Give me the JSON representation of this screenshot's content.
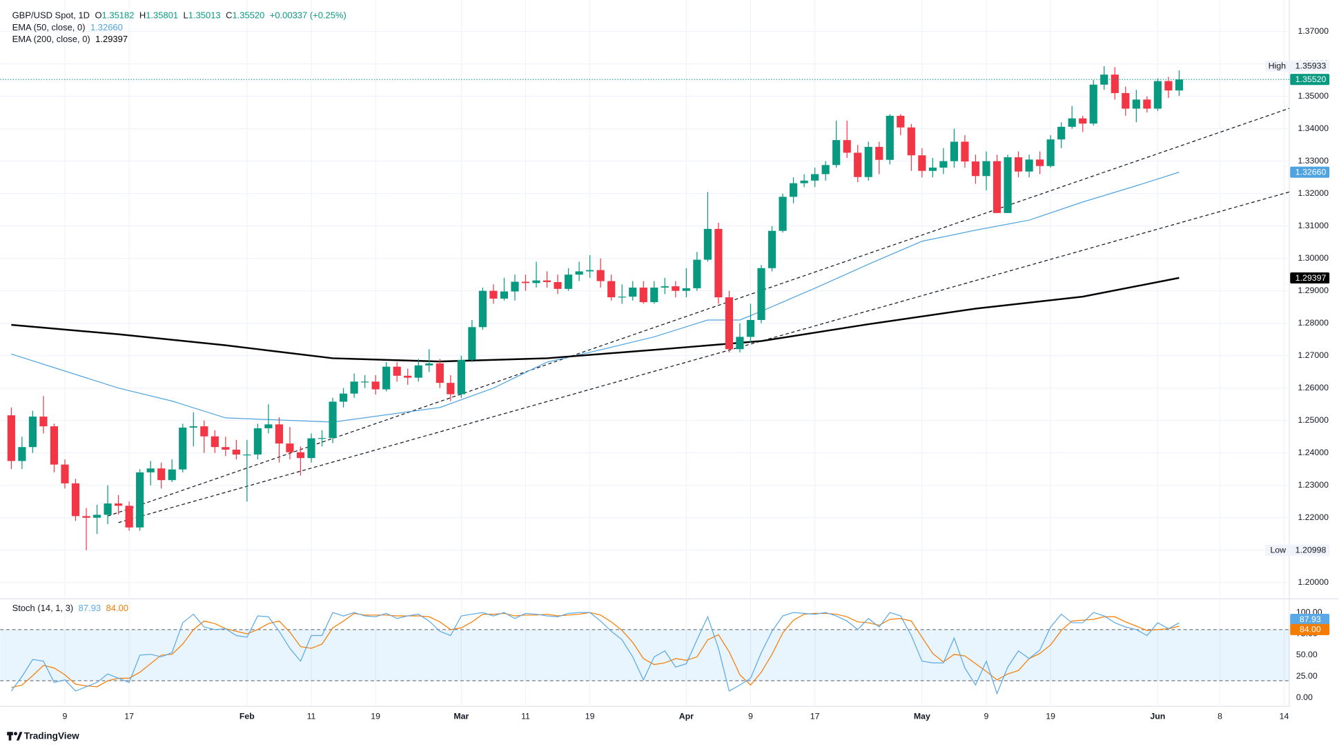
{
  "brand": "TradingView",
  "chart_data": [
    {
      "type": "candlestick",
      "title": "GBP/USD Spot, 1D",
      "header": [
        {
          "key": "O",
          "value": "1.35182"
        },
        {
          "key": "H",
          "value": "1.35801"
        },
        {
          "key": "L",
          "value": "1.35013"
        },
        {
          "key": "C",
          "value": "1.35520"
        }
      ],
      "change": "+0.00337 (+0.25%)",
      "up_color": "#089981",
      "down_color": "#f23645",
      "open": [
        1.2516,
        1.2375,
        1.2418,
        1.2512,
        1.2482,
        1.2364,
        1.2306,
        1.2205,
        1.22,
        1.2209,
        1.2244,
        1.2237,
        1.217,
        1.234,
        1.2352,
        1.2316,
        1.2349,
        1.2478,
        1.2482,
        1.2451,
        1.2418,
        1.241,
        1.2395,
        1.2395,
        1.2476,
        1.2488,
        1.2429,
        1.2402,
        1.2384,
        1.2445,
        1.2446,
        1.2558,
        1.2583,
        1.262,
        1.262,
        1.2596,
        1.2666,
        1.2638,
        1.2632,
        1.267,
        1.2676,
        1.2616,
        1.2581,
        1.2687,
        1.2788,
        1.29,
        1.2876,
        1.2898,
        1.2928,
        1.2924,
        1.2932,
        1.2927,
        1.2906,
        1.295,
        1.296,
        1.2964,
        1.293,
        1.288,
        1.2882,
        1.291,
        1.2865,
        1.291,
        1.2914,
        1.29,
        1.2908,
        1.2996,
        1.3091,
        1.288,
        1.272,
        1.2758,
        1.281,
        1.297,
        1.3085,
        1.319,
        1.3232,
        1.324,
        1.326,
        1.3288,
        1.3365,
        1.3326,
        1.3251,
        1.3344,
        1.3304,
        1.344,
        1.3404,
        1.3318,
        1.327,
        1.328,
        1.33,
        1.336,
        1.3299,
        1.3254,
        1.33,
        1.314,
        1.3312,
        1.3268,
        1.3305,
        1.3285,
        1.3367,
        1.3406,
        1.3432,
        1.3416,
        1.3536,
        1.3567,
        1.351,
        1.3462,
        1.349,
        1.3462,
        1.3547,
        1.3518
      ],
      "high": [
        1.254,
        1.245,
        1.253,
        1.2575,
        1.249,
        1.238,
        1.232,
        1.223,
        1.224,
        1.23,
        1.227,
        1.225,
        1.235,
        1.2375,
        1.237,
        1.238,
        1.249,
        1.2525,
        1.25,
        1.247,
        1.245,
        1.244,
        1.244,
        1.249,
        1.255,
        1.251,
        1.248,
        1.242,
        1.246,
        1.247,
        1.257,
        1.26,
        1.2645,
        1.264,
        1.264,
        1.268,
        1.268,
        1.266,
        1.269,
        1.272,
        1.269,
        1.264,
        1.27,
        1.281,
        1.291,
        1.292,
        1.294,
        1.295,
        1.295,
        1.299,
        1.296,
        1.295,
        1.297,
        1.299,
        1.301,
        1.3,
        1.295,
        1.292,
        1.293,
        1.293,
        1.293,
        1.294,
        1.293,
        1.297,
        1.302,
        1.3205,
        1.311,
        1.29,
        1.28,
        1.286,
        1.298,
        1.31,
        1.32,
        1.325,
        1.326,
        1.328,
        1.33,
        1.3425,
        1.3425,
        1.335,
        1.336,
        1.336,
        1.3445,
        1.3445,
        1.3415,
        1.334,
        1.331,
        1.334,
        1.34,
        1.338,
        1.332,
        1.333,
        1.332,
        1.332,
        1.333,
        1.332,
        1.333,
        1.338,
        1.342,
        1.347,
        1.344,
        1.355,
        1.3593,
        1.359,
        1.353,
        1.352,
        1.35,
        1.3555,
        1.356,
        1.358
      ],
      "low": [
        1.235,
        1.235,
        1.24,
        1.246,
        1.234,
        1.229,
        1.219,
        1.21,
        1.215,
        1.218,
        1.221,
        1.216,
        1.216,
        1.23,
        1.229,
        1.231,
        1.234,
        1.242,
        1.24,
        1.24,
        1.239,
        1.238,
        1.225,
        1.238,
        1.246,
        1.237,
        1.238,
        1.233,
        1.237,
        1.242,
        1.243,
        1.254,
        1.257,
        1.26,
        1.258,
        1.259,
        1.262,
        1.261,
        1.262,
        1.265,
        1.26,
        1.256,
        1.257,
        1.268,
        1.278,
        1.286,
        1.287,
        1.287,
        1.29,
        1.291,
        1.291,
        1.289,
        1.29,
        1.293,
        1.294,
        1.291,
        1.287,
        1.286,
        1.287,
        1.286,
        1.286,
        1.289,
        1.288,
        1.288,
        1.29,
        1.299,
        1.286,
        1.271,
        1.271,
        1.274,
        1.28,
        1.296,
        1.308,
        1.317,
        1.322,
        1.322,
        1.324,
        1.328,
        1.331,
        1.3235,
        1.324,
        1.326,
        1.329,
        1.338,
        1.327,
        1.325,
        1.325,
        1.326,
        1.328,
        1.328,
        1.323,
        1.321,
        1.314,
        1.314,
        1.325,
        1.325,
        1.326,
        1.328,
        1.334,
        1.34,
        1.339,
        1.341,
        1.352,
        1.349,
        1.344,
        1.342,
        1.345,
        1.3455,
        1.3495,
        1.3501
      ],
      "close": [
        1.2375,
        1.2418,
        1.2512,
        1.2482,
        1.2364,
        1.2306,
        1.2205,
        1.22,
        1.2209,
        1.2244,
        1.2237,
        1.217,
        1.234,
        1.2352,
        1.2316,
        1.2349,
        1.2478,
        1.2482,
        1.2451,
        1.2418,
        1.241,
        1.2395,
        1.2395,
        1.2476,
        1.2488,
        1.2429,
        1.2402,
        1.2384,
        1.2445,
        1.2446,
        1.2558,
        1.2583,
        1.262,
        1.262,
        1.2596,
        1.2666,
        1.2638,
        1.2632,
        1.267,
        1.2676,
        1.2616,
        1.2581,
        1.2687,
        1.2788,
        1.29,
        1.2876,
        1.2898,
        1.2928,
        1.2924,
        1.2932,
        1.2927,
        1.2906,
        1.295,
        1.296,
        1.2964,
        1.293,
        1.288,
        1.2882,
        1.291,
        1.2865,
        1.291,
        1.2914,
        1.29,
        1.2908,
        1.2996,
        1.3091,
        1.288,
        1.272,
        1.2758,
        1.281,
        1.297,
        1.3085,
        1.319,
        1.3232,
        1.324,
        1.326,
        1.3288,
        1.3365,
        1.3326,
        1.3251,
        1.3344,
        1.3304,
        1.344,
        1.3404,
        1.3318,
        1.327,
        1.328,
        1.33,
        1.336,
        1.3299,
        1.3254,
        1.33,
        1.314,
        1.3312,
        1.3268,
        1.3305,
        1.3285,
        1.3367,
        1.3406,
        1.3432,
        1.3416,
        1.3536,
        1.3567,
        1.351,
        1.3462,
        1.349,
        1.3462,
        1.3547,
        1.3518,
        1.3552
      ],
      "last": {
        "value": 1.3552,
        "label": "1.35520"
      },
      "extremes": [
        {
          "label": "High",
          "value": 1.35933,
          "value_label": "1.35933"
        },
        {
          "label": "Low",
          "value": 1.20998,
          "value_label": "1.20998"
        }
      ],
      "series": [
        {
          "name": "EMA (50, close, 0)",
          "color": "#4fa3e0",
          "width": 1,
          "x": [
            0,
            10,
            15,
            20,
            30,
            40,
            45,
            50,
            55,
            60,
            65,
            68,
            70,
            75,
            80,
            85,
            90,
            95,
            100,
            105,
            109
          ],
          "values": [
            1.2705,
            1.26,
            1.256,
            1.2508,
            1.2495,
            1.254,
            1.26,
            1.268,
            1.2718,
            1.2758,
            1.281,
            1.281,
            1.2837,
            1.2908,
            1.2982,
            1.3053,
            1.3087,
            1.3118,
            1.3174,
            1.3224,
            1.3266
          ],
          "last": {
            "value": 1.3266,
            "label": "1.32660"
          }
        },
        {
          "name": "EMA (200, close, 0)",
          "color": "#000000",
          "width": 2,
          "x": [
            0,
            10,
            20,
            30,
            40,
            50,
            60,
            70,
            80,
            90,
            100,
            109
          ],
          "values": [
            1.2795,
            1.2766,
            1.2732,
            1.2692,
            1.2682,
            1.2692,
            1.2718,
            1.2745,
            1.2797,
            1.2845,
            1.2882,
            1.294
          ],
          "last": {
            "value": 1.29397,
            "label": "1.29397"
          }
        }
      ],
      "trendlines": [
        {
          "x": [
            9,
            119.28
          ],
          "values": [
            1.2205,
            1.3463
          ]
        },
        {
          "x": [
            10,
            119.28
          ],
          "values": [
            1.2185,
            1.3205
          ]
        }
      ],
      "xlim": [
        -0.4,
        119.28
      ],
      "xticks": [
        {
          "value": 5,
          "label": "9"
        },
        {
          "value": 11,
          "label": "17"
        },
        {
          "value": 22,
          "label": "Feb"
        },
        {
          "value": 28,
          "label": "11"
        },
        {
          "value": 34,
          "label": "19"
        },
        {
          "value": 42,
          "label": "Mar"
        },
        {
          "value": 48,
          "label": "11"
        },
        {
          "value": 54,
          "label": "19"
        },
        {
          "value": 63,
          "label": "Apr"
        },
        {
          "value": 69,
          "label": "9"
        },
        {
          "value": 75,
          "label": "17"
        },
        {
          "value": 85,
          "label": "May"
        },
        {
          "value": 91,
          "label": "9"
        },
        {
          "value": 97,
          "label": "19"
        },
        {
          "value": 107,
          "label": "Jun"
        },
        {
          "value": 112.8,
          "label": "8"
        },
        {
          "value": 118.8,
          "label": "14"
        }
      ],
      "ylim": [
        1.1955,
        1.3784
      ],
      "yticks": [
        {
          "value": 1.2,
          "label": "1.20000"
        },
        {
          "value": 1.21,
          "label": "1.21000"
        },
        {
          "value": 1.22,
          "label": "1.22000"
        },
        {
          "value": 1.23,
          "label": "1.23000"
        },
        {
          "value": 1.24,
          "label": "1.24000"
        },
        {
          "value": 1.25,
          "label": "1.25000"
        },
        {
          "value": 1.26,
          "label": "1.26000"
        },
        {
          "value": 1.27,
          "label": "1.27000"
        },
        {
          "value": 1.28,
          "label": "1.28000"
        },
        {
          "value": 1.29,
          "label": "1.29000"
        },
        {
          "value": 1.3,
          "label": "1.30000"
        },
        {
          "value": 1.31,
          "label": "1.31000"
        },
        {
          "value": 1.32,
          "label": "1.32000"
        },
        {
          "value": 1.33,
          "label": "1.33000"
        },
        {
          "value": 1.34,
          "label": "1.34000"
        },
        {
          "value": 1.35,
          "label": "1.35000"
        },
        {
          "value": 1.36,
          "label": "1.36000"
        },
        {
          "value": 1.37,
          "label": "1.37000"
        }
      ],
      "grid": true
    },
    {
      "type": "stochastic",
      "name": "Stoch (14, 1, 3)",
      "series": [
        {
          "color": "#5aa9e6",
          "values": [
            8,
            25,
            45,
            43,
            18,
            21,
            8,
            13,
            18,
            28,
            23,
            18,
            50,
            51,
            48,
            53,
            88,
            98,
            83,
            80,
            81,
            73,
            71,
            96,
            95,
            78,
            58,
            43,
            73,
            73,
            100,
            96,
            100,
            96,
            95,
            99,
            93,
            96,
            98,
            90,
            78,
            73,
            96,
            98,
            100,
            96,
            100,
            93,
            99,
            98,
            96,
            95,
            99,
            100,
            100,
            90,
            78,
            68,
            48,
            21,
            48,
            55,
            36,
            40,
            68,
            95,
            58,
            8,
            15,
            23,
            53,
            78,
            96,
            100,
            99,
            98,
            100,
            96,
            90,
            80,
            93,
            83,
            100,
            96,
            73,
            43,
            41,
            41,
            70,
            35,
            15,
            43,
            5,
            36,
            55,
            46,
            56,
            83,
            98,
            88,
            88,
            100,
            96,
            88,
            83,
            80,
            73,
            88,
            81,
            87.93
          ],
          "last": {
            "value": 87.93,
            "label": "87.93"
          }
        },
        {
          "color": "#f57c00",
          "values": [
            12,
            15,
            26,
            38,
            35,
            27,
            16,
            14,
            13,
            20,
            23,
            23,
            30,
            40,
            50,
            51,
            63,
            80,
            90,
            87,
            81,
            78,
            75,
            80,
            87,
            90,
            77,
            60,
            58,
            63,
            82,
            90,
            99,
            97,
            97,
            97,
            96,
            96,
            96,
            95,
            89,
            80,
            82,
            89,
            98,
            98,
            99,
            96,
            97,
            97,
            98,
            96,
            97,
            98,
            100,
            97,
            89,
            79,
            65,
            46,
            39,
            41,
            46,
            44,
            48,
            68,
            74,
            54,
            27,
            15,
            30,
            51,
            76,
            91,
            98,
            99,
            99,
            98,
            95,
            89,
            88,
            85,
            92,
            93,
            90,
            71,
            52,
            42,
            51,
            49,
            40,
            31,
            21,
            28,
            32,
            46,
            52,
            62,
            79,
            90,
            91,
            92,
            95,
            95,
            89,
            84,
            79,
            80,
            81,
            84
          ],
          "last": {
            "value": 84,
            "label": "84.00"
          }
        }
      ],
      "band": [
        20,
        80
      ],
      "band_color": "#2196f3",
      "ylim": [
        -10,
        115
      ],
      "yticks": [
        {
          "value": 0,
          "label": "0.00"
        },
        {
          "value": 25,
          "label": "25.00"
        },
        {
          "value": 50,
          "label": "50.00"
        },
        {
          "value": 75,
          "label": "75.00"
        },
        {
          "value": 100,
          "label": "100.00"
        }
      ]
    }
  ]
}
